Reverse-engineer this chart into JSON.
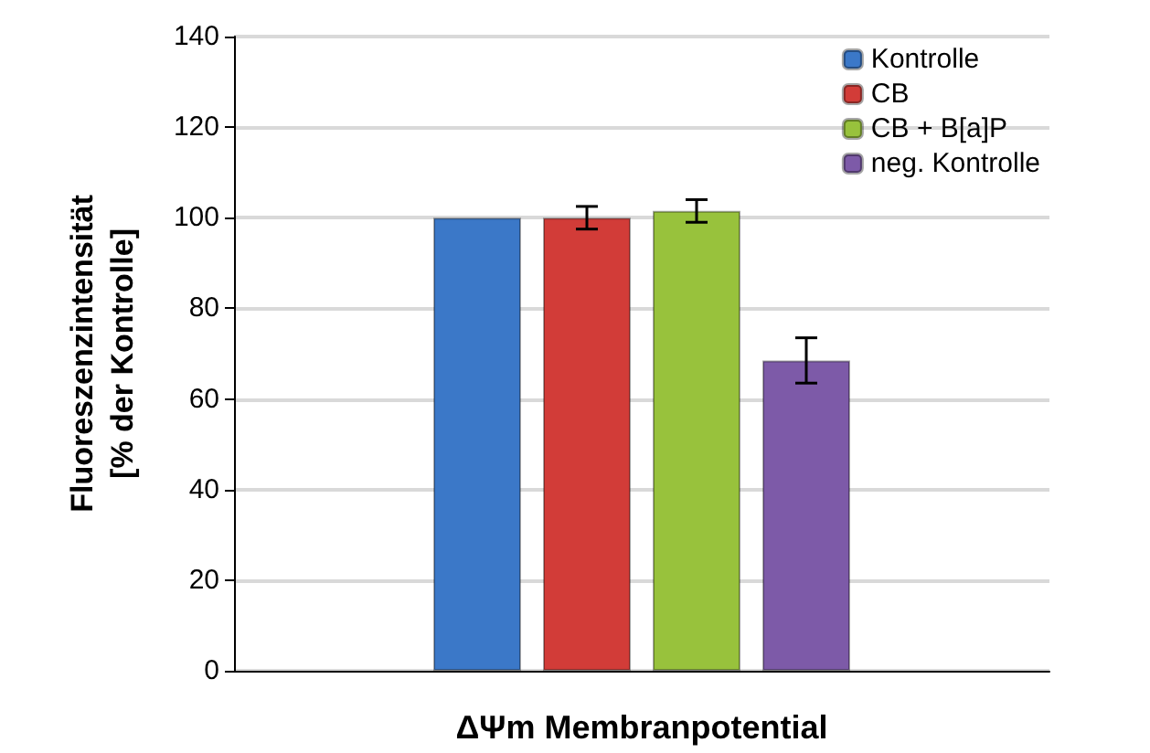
{
  "chart_data": {
    "type": "bar",
    "xlabel": "ΔΨm Membranpotential",
    "ylabel": "Fluoreszenzintensität\n[% der Kontrolle]",
    "categories": [
      null
    ],
    "series": [
      {
        "name": "Kontrolle",
        "color": "#3b78c8",
        "values": [
          100
        ],
        "errors": [
          null
        ]
      },
      {
        "name": "CB",
        "color": "#d23c38",
        "values": [
          100
        ],
        "errors": [
          2.5
        ]
      },
      {
        "name": "CB + B[a]P",
        "color": "#98c23c",
        "values": [
          101.5
        ],
        "errors": [
          2.5
        ]
      },
      {
        "name": "neg. Kontrolle",
        "color": "#7d5aa8",
        "values": [
          68.5
        ],
        "errors": [
          5
        ]
      }
    ],
    "ylim": [
      0,
      140
    ],
    "yticks": [
      0,
      20,
      40,
      60,
      80,
      100,
      120,
      140
    ],
    "grid": "y",
    "legend": "top right"
  }
}
